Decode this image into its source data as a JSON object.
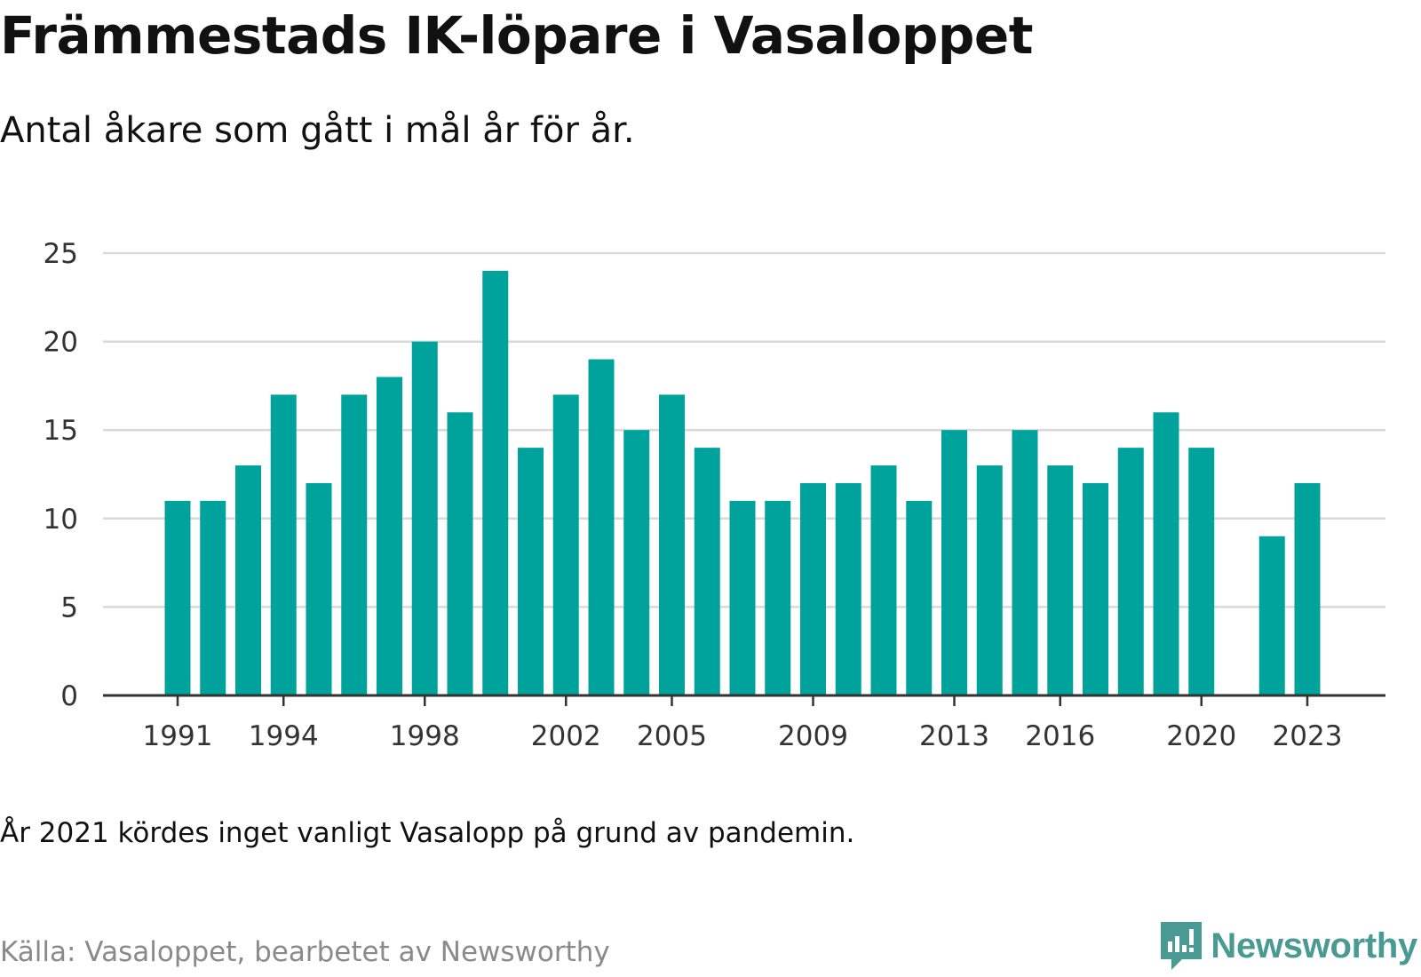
{
  "title": "Främmestads IK-löpare i Vasaloppet",
  "subtitle": "Antal åkare som gått i mål år för år.",
  "note": "År 2021 kördes inget vanligt Vasalopp på grund av pandemin.",
  "source": "Källa: Vasaloppet, bearbetet av Newsworthy",
  "brand": {
    "name": "Newsworthy",
    "icon": "newsworthy-logo-icon"
  },
  "colors": {
    "bar": "#00a39b",
    "grid": "#d9d9d9",
    "axis": "#333333",
    "brand": "#4a9a94"
  },
  "chart_data": {
    "type": "bar",
    "categories": [
      1991,
      1992,
      1993,
      1994,
      1995,
      1996,
      1997,
      1998,
      1999,
      2000,
      2001,
      2002,
      2003,
      2004,
      2005,
      2006,
      2007,
      2008,
      2009,
      2010,
      2011,
      2012,
      2013,
      2014,
      2015,
      2016,
      2017,
      2018,
      2019,
      2020,
      2021,
      2022,
      2023
    ],
    "values": [
      11,
      11,
      13,
      17,
      12,
      17,
      18,
      20,
      16,
      24,
      14,
      17,
      19,
      15,
      17,
      14,
      11,
      11,
      12,
      12,
      13,
      11,
      15,
      13,
      15,
      13,
      12,
      14,
      16,
      14,
      null,
      9,
      12
    ],
    "x_tick_labels": [
      "1991",
      "1994",
      "1998",
      "2002",
      "2005",
      "2009",
      "2013",
      "2016",
      "2020",
      "2023"
    ],
    "y_ticks": [
      0,
      5,
      10,
      15,
      20,
      25
    ],
    "ylim": [
      0,
      25
    ],
    "grid": true,
    "xlabel": "",
    "ylabel": ""
  }
}
